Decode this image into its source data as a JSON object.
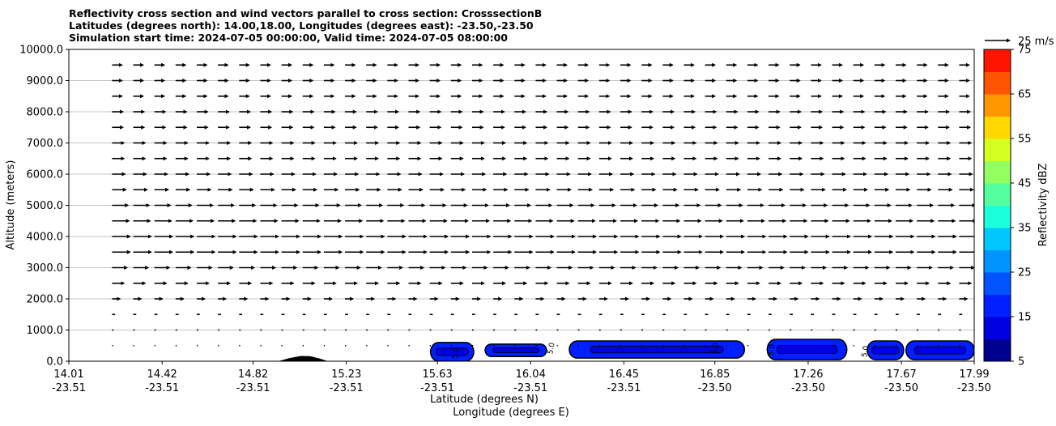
{
  "chart_data": {
    "type": "heatmap",
    "title_lines": [
      "Reflectivity cross section and wind vectors parallel to cross section: CrosssectionB",
      "Latitudes (degrees north): 14.00,18.00, Longitudes (degrees east): -23.50,-23.50",
      "Simulation start time: 2024-07-05 00:00:00, Valid time: 2024-07-05 08:00:00"
    ],
    "xlabel_lines": [
      "Latitude (degrees N)",
      "Longitude (degrees E)"
    ],
    "ylabel": "Altitude (meters)",
    "x_range": [
      14.01,
      17.99
    ],
    "ylim": [
      0,
      10000
    ],
    "y_ticks": [
      0,
      1000,
      2000,
      3000,
      4000,
      5000,
      6000,
      7000,
      8000,
      9000,
      10000
    ],
    "y_tick_labels": [
      "0.0",
      "1000.0",
      "2000.0",
      "3000.0",
      "4000.0",
      "5000.0",
      "6000.0",
      "7000.0",
      "8000.0",
      "9000.0",
      "10000.0"
    ],
    "grid": "horizontal",
    "x_ticks": [
      {
        "lat": 14.01,
        "lat_label": "14.01",
        "lon_label": "-23.51"
      },
      {
        "lat": 14.42,
        "lat_label": "14.42",
        "lon_label": "-23.51"
      },
      {
        "lat": 14.82,
        "lat_label": "14.82",
        "lon_label": "-23.51"
      },
      {
        "lat": 15.23,
        "lat_label": "15.23",
        "lon_label": "-23.51"
      },
      {
        "lat": 15.63,
        "lat_label": "15.63",
        "lon_label": "-23.51"
      },
      {
        "lat": 16.04,
        "lat_label": "16.04",
        "lon_label": "-23.51"
      },
      {
        "lat": 16.45,
        "lat_label": "16.45",
        "lon_label": "-23.51"
      },
      {
        "lat": 16.85,
        "lat_label": "16.85",
        "lon_label": "-23.50"
      },
      {
        "lat": 17.26,
        "lat_label": "17.26",
        "lon_label": "-23.50"
      },
      {
        "lat": 17.67,
        "lat_label": "17.67",
        "lon_label": "-23.50"
      },
      {
        "lat": 17.99,
        "lat_label": "17.99",
        "lon_label": "-23.50"
      }
    ],
    "wind_key": {
      "label": "25 m/s",
      "speed": 25
    },
    "colorbar": {
      "label": "Reflectivity dBZ",
      "min": 5,
      "max": 75,
      "tick_values": [
        5,
        15,
        25,
        35,
        45,
        55,
        65,
        75
      ],
      "tick_labels": [
        "5",
        "15",
        "25",
        "35",
        "45",
        "55",
        "65",
        "75"
      ],
      "levels": [
        5,
        10,
        15,
        20,
        25,
        30,
        35,
        40,
        45,
        50,
        55,
        60,
        65,
        70,
        75
      ],
      "colors": [
        "#00008f",
        "#0000e0",
        "#0020ff",
        "#0054ff",
        "#0094ff",
        "#00c8ff",
        "#1cffdc",
        "#54ffa0",
        "#94ff60",
        "#d4ff20",
        "#ffd800",
        "#ff9800",
        "#ff5400",
        "#ff1400",
        "#a80000"
      ]
    },
    "terrain": {
      "color": "#000000",
      "points": [
        [
          14.82,
          0
        ],
        [
          14.93,
          0
        ],
        [
          14.98,
          100
        ],
        [
          15.03,
          170
        ],
        [
          15.07,
          160
        ],
        [
          15.11,
          90
        ],
        [
          15.15,
          0
        ],
        [
          15.23,
          0
        ]
      ]
    },
    "reflectivity_cells": [
      {
        "lat_min": 15.6,
        "lat_max": 15.79,
        "z_min": 0,
        "z_max": 600,
        "fill": "#0020ff",
        "core": "#0000e0"
      },
      {
        "lat_min": 15.84,
        "lat_max": 16.11,
        "z_min": 150,
        "z_max": 550,
        "fill": "#0020ff",
        "core": "#0000e0"
      },
      {
        "lat_min": 16.21,
        "lat_max": 16.98,
        "z_min": 100,
        "z_max": 650,
        "fill": "#0020ff",
        "core": "#0000e0"
      },
      {
        "lat_min": 17.08,
        "lat_max": 17.43,
        "z_min": 50,
        "z_max": 700,
        "fill": "#0020ff",
        "core": "#0000e0"
      },
      {
        "lat_min": 17.52,
        "lat_max": 17.68,
        "z_min": 50,
        "z_max": 650,
        "fill": "#0020ff",
        "core": "#0000e0"
      },
      {
        "lat_min": 17.69,
        "lat_max": 17.99,
        "z_min": 50,
        "z_max": 650,
        "fill": "#0020ff",
        "core": "#0000e0"
      }
    ],
    "contour_labels": [
      {
        "lat": 15.72,
        "z": 250,
        "text": "5.0"
      },
      {
        "lat": 16.14,
        "z": 400,
        "text": "5.0"
      },
      {
        "lat": 16.86,
        "z": 400,
        "text": "5.0"
      },
      {
        "lat": 17.11,
        "z": 350,
        "text": "5.0"
      },
      {
        "lat": 17.52,
        "z": 300,
        "text": "5.0"
      }
    ],
    "wind_field": {
      "lat_start": 14.2,
      "lat_step": 0.0931,
      "columns": 41,
      "rows": [
        {
          "z": 500,
          "speed": 1
        },
        {
          "z": 1000,
          "speed": 1.5
        },
        {
          "z": 1500,
          "speed": 3
        },
        {
          "z": 2000,
          "speed": 8
        },
        {
          "z": 2500,
          "speed": 12
        },
        {
          "z": 3000,
          "speed": 15
        },
        {
          "z": 3500,
          "speed": 18
        },
        {
          "z": 4000,
          "speed": 18
        },
        {
          "z": 4500,
          "speed": 17
        },
        {
          "z": 5000,
          "speed": 16
        },
        {
          "z": 5500,
          "speed": 14
        },
        {
          "z": 6000,
          "speed": 13
        },
        {
          "z": 6500,
          "speed": 12
        },
        {
          "z": 7000,
          "speed": 12
        },
        {
          "z": 7500,
          "speed": 11
        },
        {
          "z": 8000,
          "speed": 11
        },
        {
          "z": 8500,
          "speed": 10
        },
        {
          "z": 9000,
          "speed": 10
        },
        {
          "z": 9500,
          "speed": 10
        }
      ]
    }
  }
}
